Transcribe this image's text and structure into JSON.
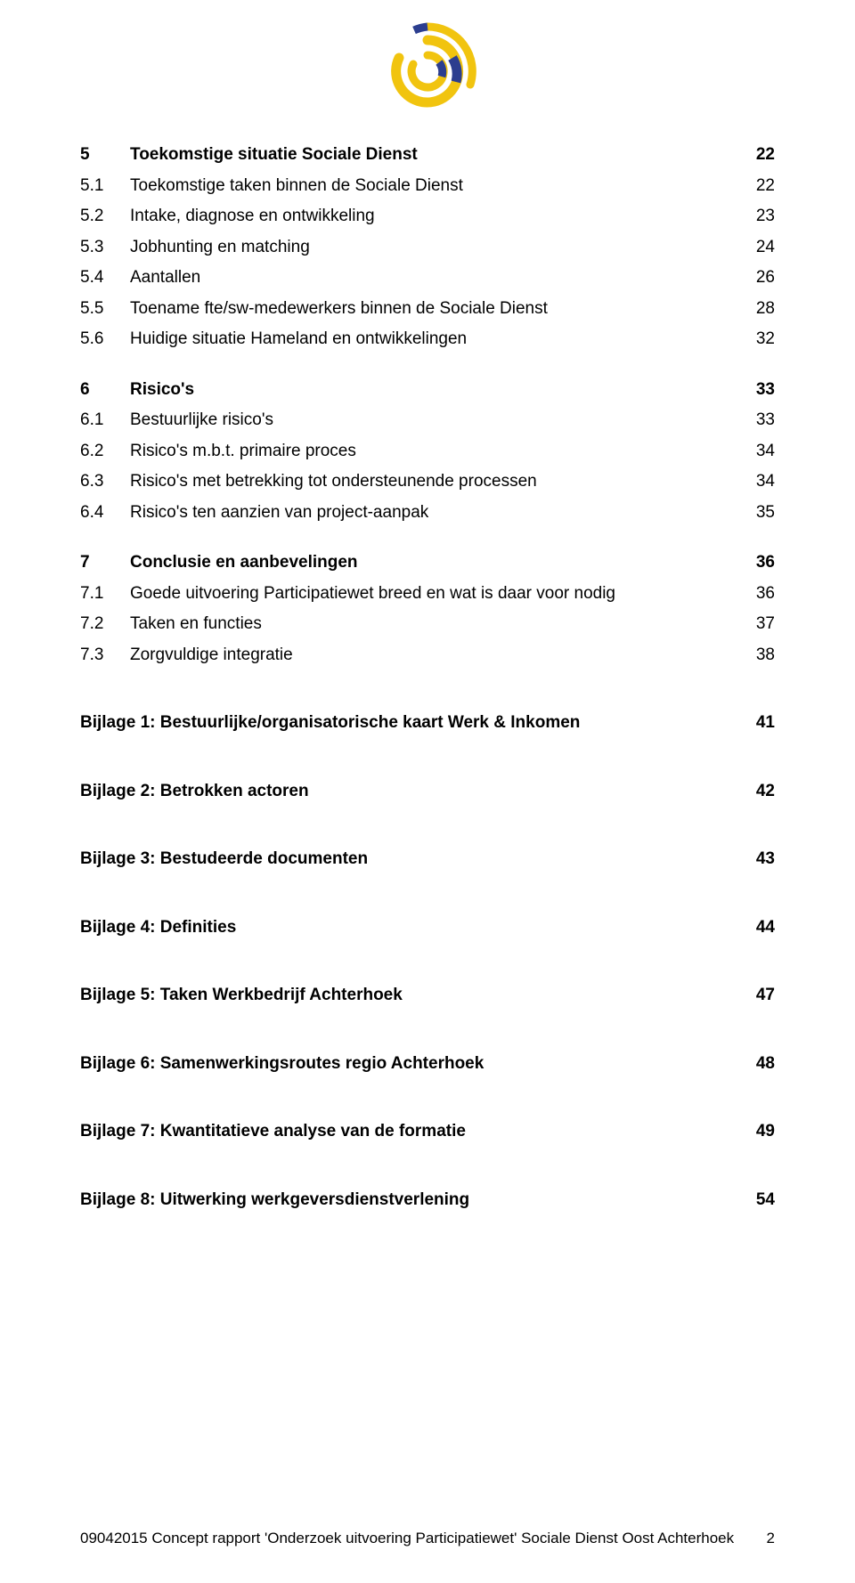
{
  "logo": {
    "outer_color": "#f1c40f",
    "mid_color": "#2c3e8f",
    "inner_color": "#f1c40f"
  },
  "sections": [
    {
      "num": "5",
      "title": "Toekomstige situatie Sociale Dienst",
      "page": "22",
      "bold": true,
      "gap": false,
      "items": [
        {
          "num": "5.1",
          "title": "Toekomstige taken binnen de Sociale Dienst",
          "page": "22"
        },
        {
          "num": "5.2",
          "title": "Intake, diagnose en ontwikkeling",
          "page": "23"
        },
        {
          "num": "5.3",
          "title": "Jobhunting en matching",
          "page": "24"
        },
        {
          "num": "5.4",
          "title": "Aantallen",
          "page": "26"
        },
        {
          "num": "5.5",
          "title": "Toename fte/sw-medewerkers binnen de Sociale Dienst",
          "page": "28"
        },
        {
          "num": "5.6",
          "title": "Huidige situatie Hameland en ontwikkelingen",
          "page": "32"
        }
      ]
    },
    {
      "num": "6",
      "title": "Risico's",
      "page": "33",
      "bold": true,
      "gap": true,
      "items": [
        {
          "num": "6.1",
          "title": "Bestuurlijke risico's",
          "page": "33"
        },
        {
          "num": "6.2",
          "title": "Risico's m.b.t. primaire proces",
          "page": "34"
        },
        {
          "num": "6.3",
          "title": "Risico's met betrekking tot ondersteunende processen",
          "page": "34"
        },
        {
          "num": "6.4",
          "title": "Risico's ten aanzien van project-aanpak",
          "page": "35"
        }
      ]
    },
    {
      "num": "7",
      "title": "Conclusie en aanbevelingen",
      "page": "36",
      "bold": true,
      "gap": true,
      "items": [
        {
          "num": "7.1",
          "title": "Goede uitvoering Participatiewet breed en wat is daar voor nodig",
          "page": "36"
        },
        {
          "num": "7.2",
          "title": "Taken en functies",
          "page": "37"
        },
        {
          "num": "7.3",
          "title": "Zorgvuldige integratie",
          "page": "38"
        }
      ]
    }
  ],
  "appendices": [
    {
      "title": "Bijlage 1: Bestuurlijke/organisatorische kaart Werk & Inkomen",
      "page": "41"
    },
    {
      "title": "Bijlage 2: Betrokken actoren",
      "page": "42"
    },
    {
      "title": "Bijlage 3: Bestudeerde documenten",
      "page": "43"
    },
    {
      "title": "Bijlage 4: Definities",
      "page": "44"
    },
    {
      "title": "Bijlage 5: Taken Werkbedrijf Achterhoek",
      "page": "47"
    },
    {
      "title": "Bijlage 6: Samenwerkingsroutes regio Achterhoek",
      "page": "48"
    },
    {
      "title": "Bijlage 7: Kwantitatieve analyse van de formatie",
      "page": "49"
    },
    {
      "title": "Bijlage 8: Uitwerking werkgeversdienstverlening",
      "page": "54"
    }
  ],
  "footer": {
    "text": "09042015 Concept rapport 'Onderzoek uitvoering Participatiewet' Sociale Dienst Oost Achterhoek",
    "page": "2"
  }
}
